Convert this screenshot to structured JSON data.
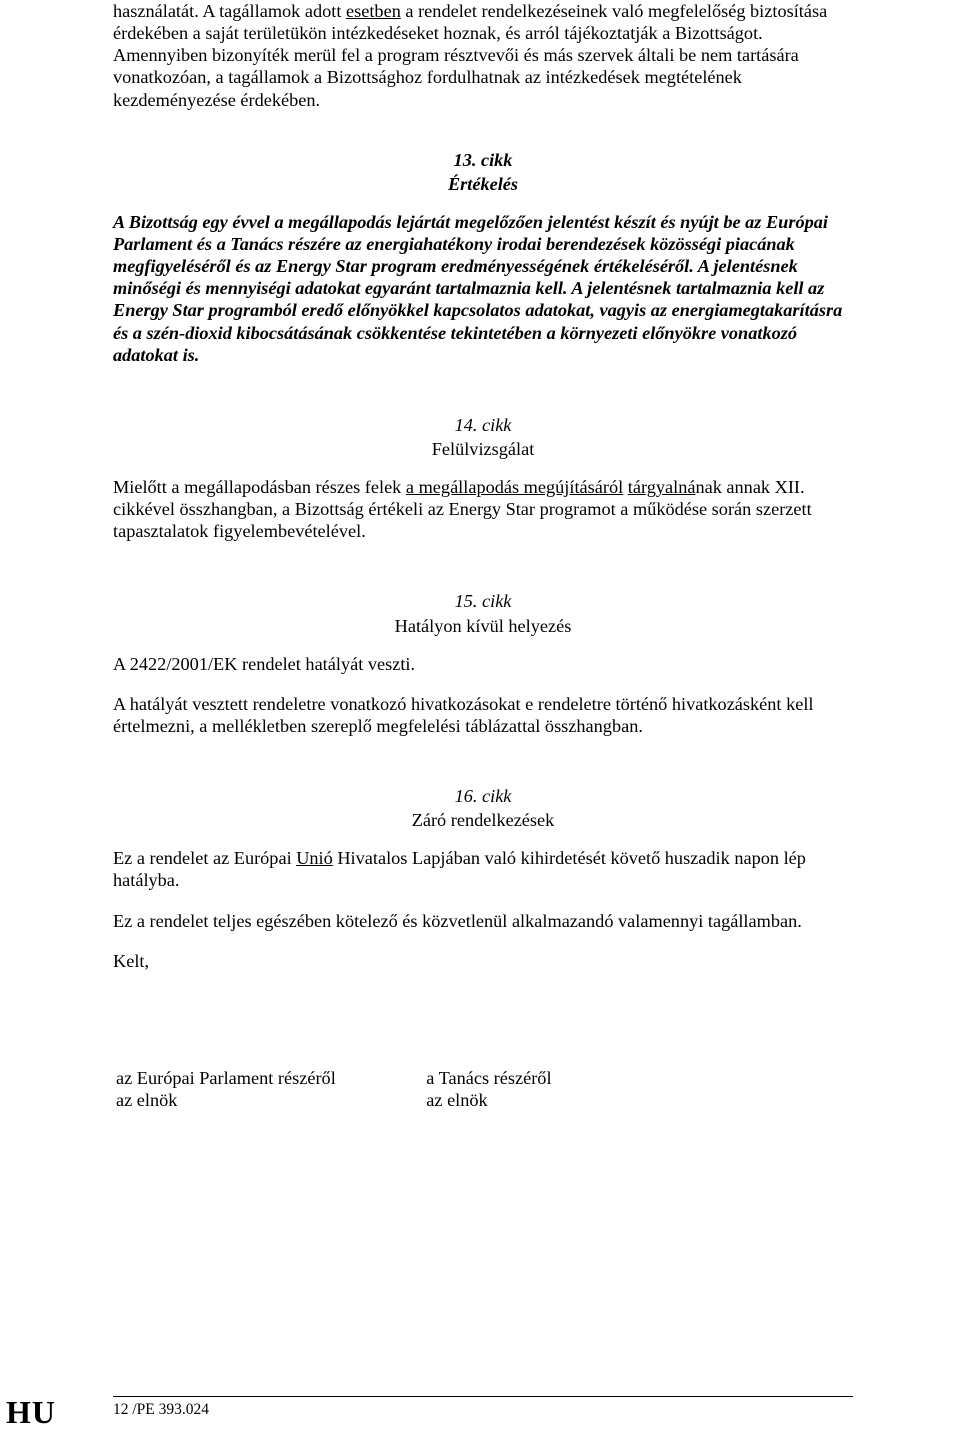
{
  "intro": {
    "p1_a": "használatát. A tagállamok adott ",
    "p1_u1": "esetben",
    "p1_b": " a rendelet rendelkezéseinek való megfelelőség biztosítása érdekében a saját területükön intézkedéseket hoznak, és arról tájékoztatják a Bizottságot. Amennyiben bizonyíték merül fel a program résztvevői és más szervek általi be nem tartására vonatkozóan, a tagállamok a Bizottsághoz fordulhatnak az intézkedések megtételének kezdeményezése érdekében."
  },
  "art13": {
    "num": "13. cikk",
    "title": "Értékelés",
    "body": "A Bizottság egy évvel a megállapodás lejártát megelőzően jelentést készít és nyújt be az Európai Parlament és a Tanács részére az energiahatékony irodai berendezések közösségi piacának megfigyeléséről és az Energy Star program eredményességének értékeléséről. A jelentésnek minőségi és mennyiségi adatokat egyaránt tartalmaznia kell. A jelentésnek tartalmaznia kell az Energy Star programból eredő előnyökkel kapcsolatos adatokat, vagyis az energiamegtakarításra és a szén-dioxid kibocsátásának csökkentése tekintetében a környezeti előnyökre vonatkozó adatokat is."
  },
  "art14": {
    "num": "14. cikk",
    "title": "Felülvizsgálat",
    "p_a": "Mielőtt a megállapodásban részes felek ",
    "p_u1": "a megállapodás megújításáról",
    "p_b": " ",
    "p_u2": "tárgyalná",
    "p_c": "nak annak XII. cikkével összhangban, a Bizottság értékeli az Energy Star programot a működése során szerzett tapasztalatok figyelembevételével."
  },
  "art15": {
    "num": "15. cikk",
    "title": "Hatályon kívül helyezés",
    "p1": "A 2422/2001/EK rendelet hatályát veszti.",
    "p2": "A hatályát vesztett rendeletre vonatkozó hivatkozásokat e rendeletre történő hivatkozásként kell értelmezni, a mellékletben szereplő megfelelési táblázattal összhangban."
  },
  "art16": {
    "num": "16. cikk",
    "title": "Záró rendelkezések",
    "p1_a": "Ez a rendelet az Európai ",
    "p1_u1": "Unió",
    "p1_b": " Hivatalos Lapjában való kihirdetését követő huszadik napon lép hatályba.",
    "p2": "Ez a rendelet teljes egészében kötelező és közvetlenül alkalmazandó valamennyi tagállamban.",
    "p3": "Kelt,"
  },
  "sign": {
    "left1": "az Európai Parlament részéről",
    "left2": "az elnök",
    "right1": "a Tanács részéről",
    "right2": "az elnök"
  },
  "footer": {
    "text": "12 /PE 393.024"
  },
  "lang": "HU"
}
